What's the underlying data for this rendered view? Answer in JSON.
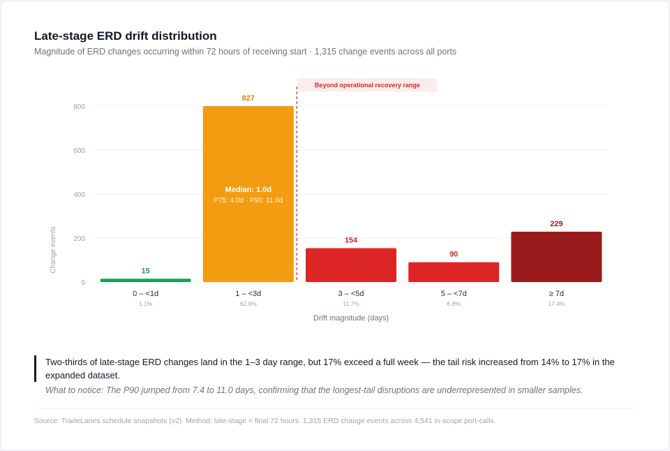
{
  "header": {
    "title": "Late-stage ERD drift distribution",
    "subtitle": "Magnitude of ERD changes occurring within 72 hours of receiving start · 1,315 change events across all ports"
  },
  "chart_data": {
    "type": "bar",
    "title": "Late-stage ERD drift distribution",
    "xlabel": "Drift magnitude (days)",
    "ylabel": "Change events",
    "ylim": [
      0,
      800
    ],
    "yticks": [
      0,
      200,
      400,
      600,
      800
    ],
    "grid": true,
    "categories": [
      "0 – <1d",
      "1 – <3d",
      "3 – <5d",
      "5 – <7d",
      "≥ 7d"
    ],
    "values": [
      15,
      827,
      154,
      90,
      229
    ],
    "value_labels": [
      "15",
      "827",
      "154",
      "90",
      "229"
    ],
    "percent_labels": [
      "1.1%",
      "62.9%",
      "11.7%",
      "6.8%",
      "17.4%"
    ],
    "colors": [
      "#1f9d55",
      "#f39c12",
      "#dc2626",
      "#dc2626",
      "#991b1b"
    ],
    "label_colors": [
      "#1f9d55",
      "#d4860b",
      "#dc2626",
      "#dc2626",
      "#991b1b"
    ],
    "annotations": {
      "median_label": "Median: 1.0d",
      "percentile_label": "P75: 4.0d · P90: 11.0d",
      "threshold_label": "Beyond operational recovery range",
      "threshold_after_index": 1,
      "threshold_color": "#dc2626"
    }
  },
  "insight": {
    "takeaway": "Two-thirds of late-stage ERD changes land in the 1–3 day range, but 17% exceed a full week — the tail risk increased from 14% to 17% in the expanded dataset.",
    "notice": "What to notice: The P90 jumped from 7.4 to 11.0 days, confirming that the longest-tail disruptions are underrepresented in smaller samples."
  },
  "footer": {
    "source": "Source: TradeLanes schedule snapshots (v2). Method: late-stage = final 72 hours. 1,315 ERD change events across 4,541 in-scope port-calls."
  }
}
